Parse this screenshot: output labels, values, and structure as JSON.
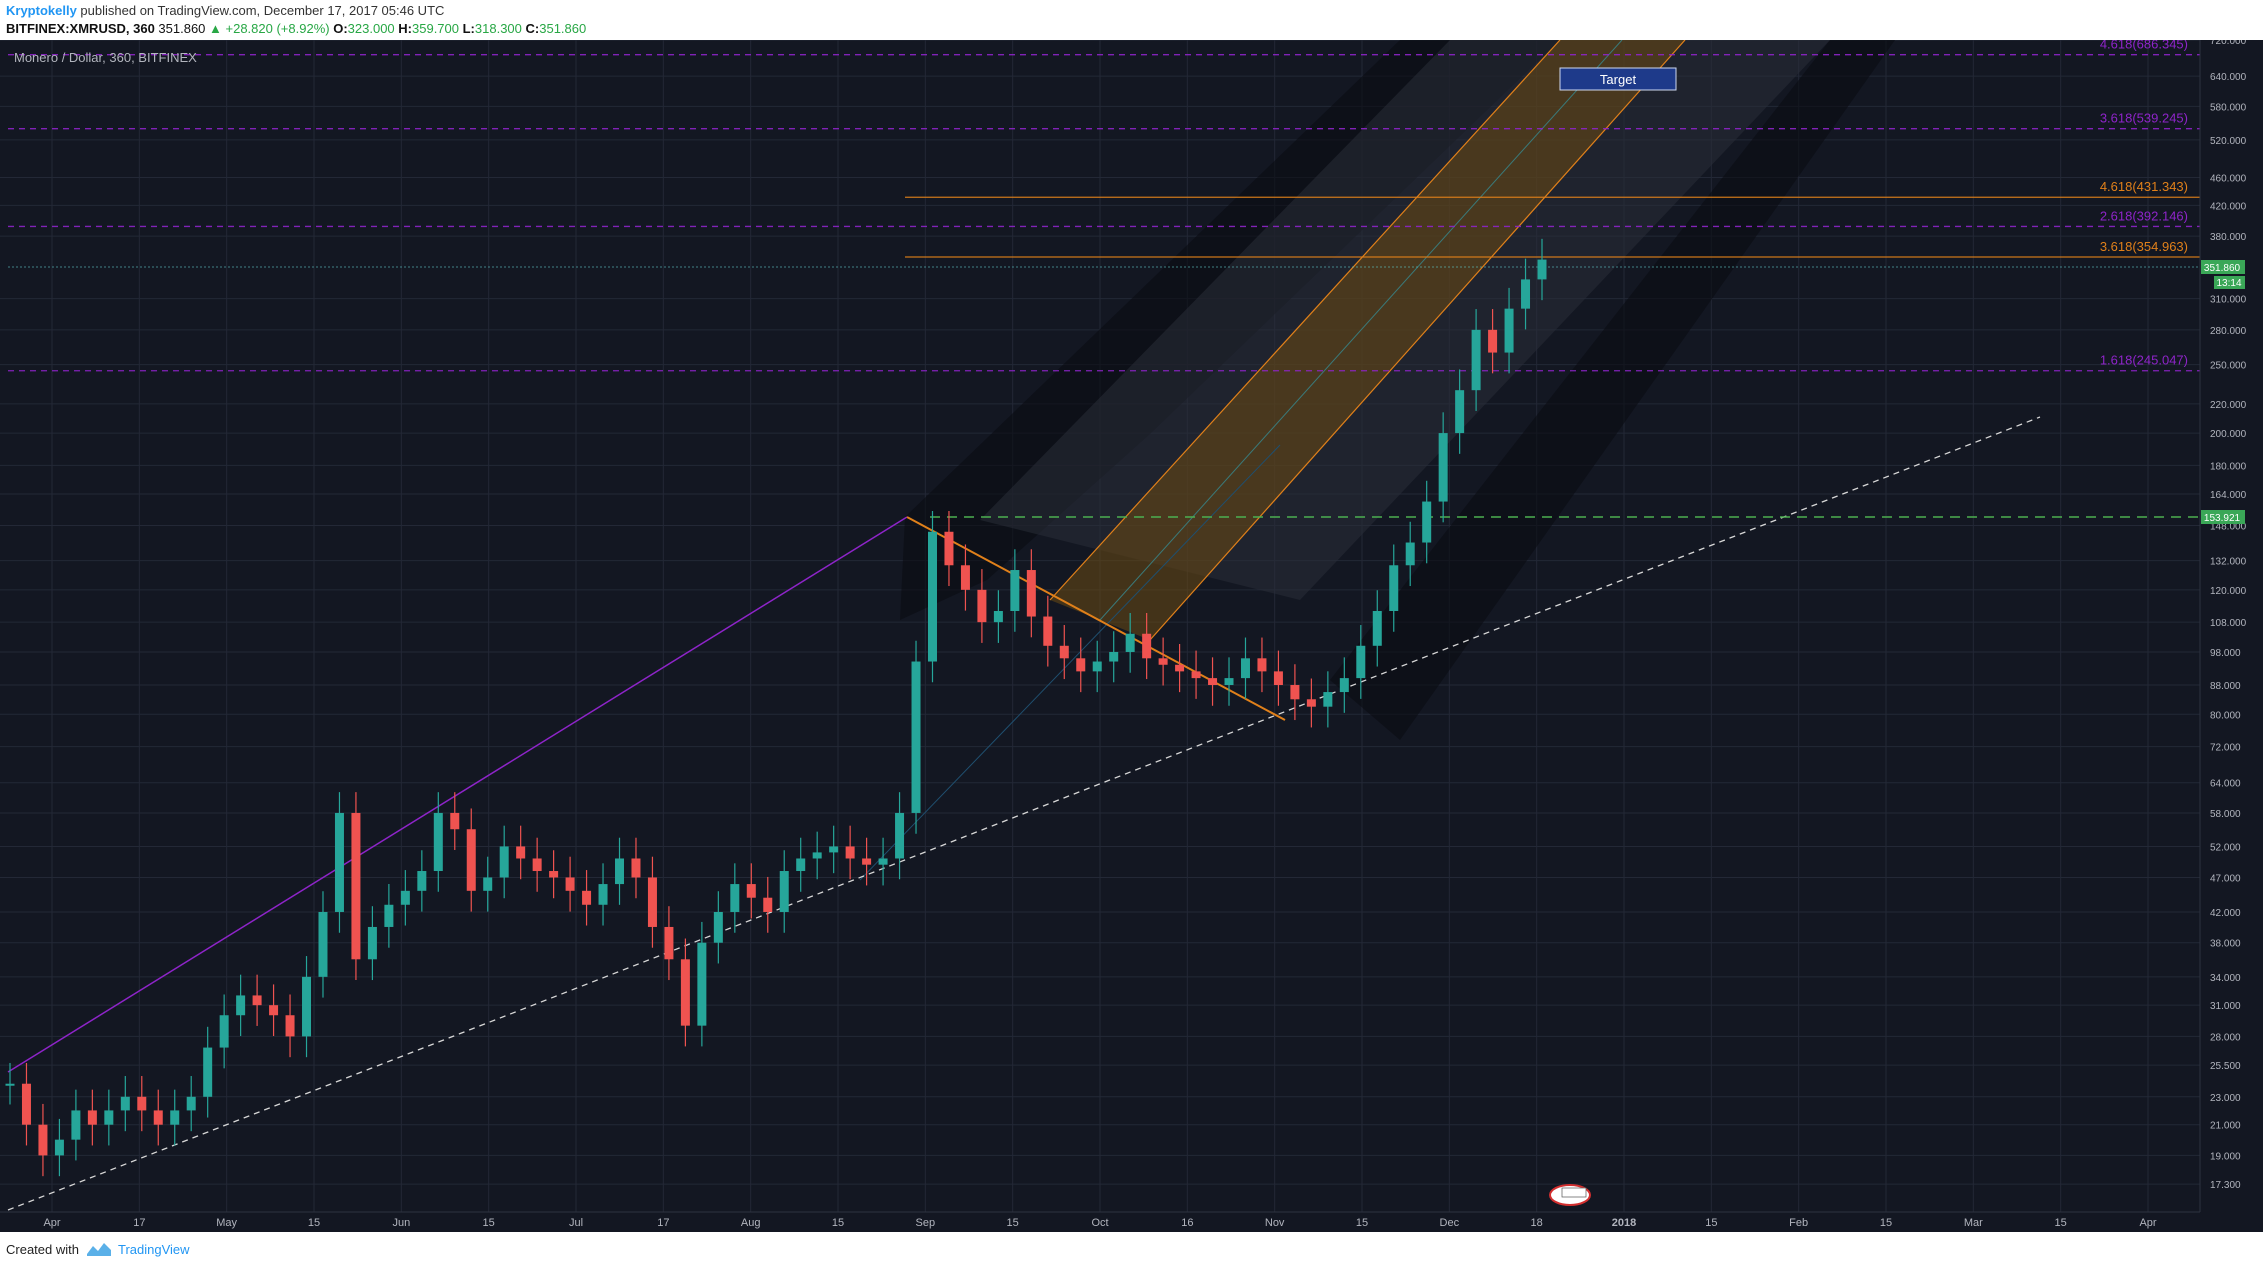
{
  "header": {
    "author": "Kryptokelly",
    "published": " published on TradingView.com, December 17, 2017 05:46 UTC",
    "symbol": "BITFINEX:XMRUSD, 360",
    "last": " 351.860 ",
    "change": "▲ +28.820 (+8.92%)",
    "open_label": " O:",
    "open": "323.000",
    "high_label": " H:",
    "high": "359.700",
    "low_label": " L:",
    "low": "318.300",
    "close_label": " C:",
    "close": "351.860"
  },
  "footer": {
    "created": "Created with",
    "brand": "TradingView"
  },
  "colors": {
    "background": "#131722",
    "grid": "#262b38",
    "purple": "#8e24c9",
    "orange": "#e0801a",
    "green_dash": "#4caf50",
    "price_label": "#3aa757"
  },
  "chart_data": {
    "type": "line",
    "title": "Monero / Dollar, 360, BITFINEX",
    "target_label": "Target",
    "ylim": [
      15.8,
      720
    ],
    "scale": "log",
    "y_ticks": [
      "720.000",
      "640.000",
      "580.000",
      "520.000",
      "460.000",
      "420.000",
      "380.000",
      "310.000",
      "280.000",
      "250.000",
      "220.000",
      "200.000",
      "180.000",
      "164.000",
      "148.000",
      "132.000",
      "120.000",
      "108.000",
      "98.000",
      "88.000",
      "80.000",
      "72.000",
      "64.000",
      "58.000",
      "52.000",
      "47.000",
      "42.000",
      "38.000",
      "34.000",
      "31.000",
      "28.000",
      "25.500",
      "23.000",
      "21.000",
      "19.000",
      "17.300"
    ],
    "x_ticks": [
      "Apr",
      "17",
      "May",
      "15",
      "Jun",
      "15",
      "Jul",
      "17",
      "Aug",
      "15",
      "Sep",
      "15",
      "Oct",
      "16",
      "Nov",
      "15",
      "Dec",
      "18",
      "2018",
      "15",
      "Feb",
      "15",
      "Mar",
      "15",
      "Apr"
    ],
    "fib_levels": [
      {
        "label": "4.618(686.345)",
        "value": 686.345,
        "color": "#8e24c9"
      },
      {
        "label": "3.618(539.245)",
        "value": 539.245,
        "color": "#8e24c9"
      },
      {
        "label": "4.618(431.343)",
        "value": 431.343,
        "color": "#e0801a"
      },
      {
        "label": "2.618(392.146)",
        "value": 392.146,
        "color": "#8e24c9"
      },
      {
        "label": "3.618(354.963)",
        "value": 354.963,
        "color": "#e0801a"
      },
      {
        "label": "1.618(245.047)",
        "value": 245.047,
        "color": "#8e24c9"
      }
    ],
    "current_price": "351.860",
    "countdown": "13:14",
    "support_level": "153.921",
    "series": [
      {
        "values": [
          24,
          21,
          19,
          20,
          22,
          21,
          22,
          23,
          22,
          21,
          22,
          23,
          27,
          30,
          32,
          31,
          30,
          28,
          34,
          42,
          58,
          36,
          40,
          43,
          45,
          48,
          58,
          55,
          45,
          47,
          52,
          50,
          48,
          47,
          45,
          43,
          46,
          50,
          47,
          40,
          36,
          29,
          38,
          42,
          46,
          44,
          42,
          48,
          50,
          51,
          52,
          50,
          49,
          50,
          58,
          95,
          145,
          130,
          120,
          108,
          112,
          128,
          110,
          100,
          96,
          92,
          95,
          98,
          104,
          96,
          94,
          92,
          90,
          88,
          90,
          96,
          92,
          88,
          84,
          82,
          86,
          90,
          100,
          112,
          130,
          140,
          160,
          200,
          230,
          280,
          260,
          300,
          330,
          352
        ]
      }
    ]
  }
}
